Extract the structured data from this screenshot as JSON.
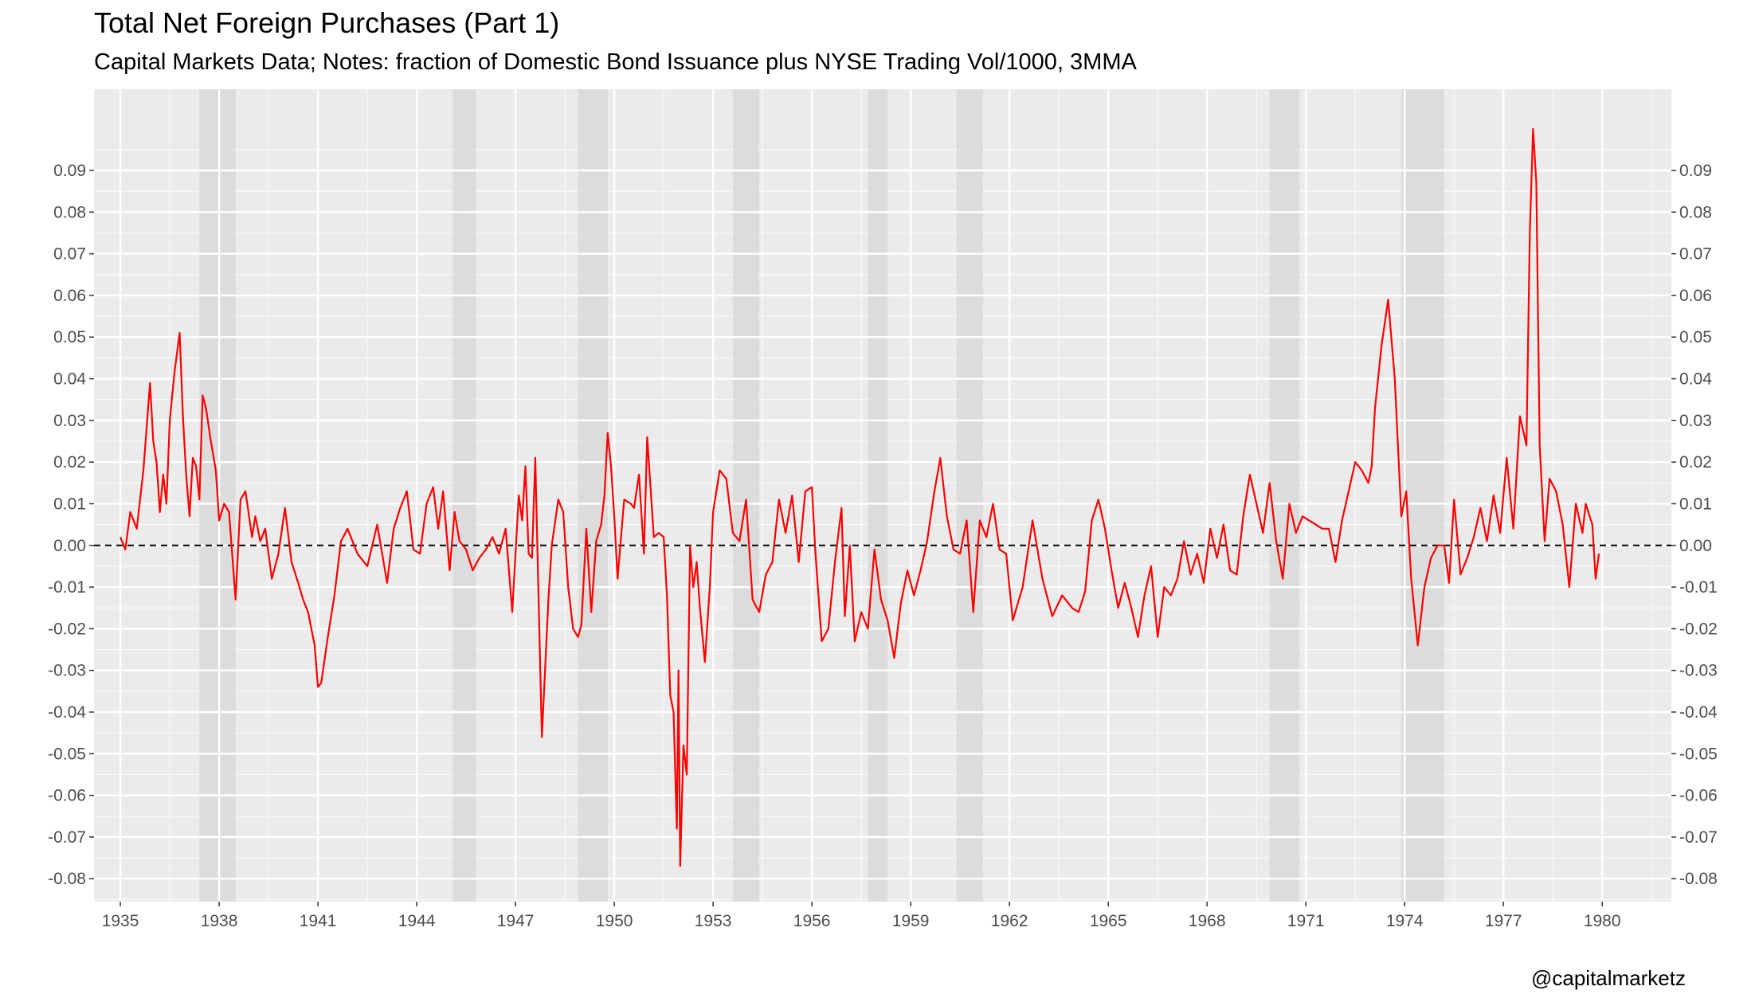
{
  "title": "Total Net Foreign Purchases (Part 1)",
  "subtitle": "Capital Markets Data; Notes: fraction of Domestic Bond Issuance plus NYSE Trading Vol/1000, 3MMA",
  "caption": "@capitalmarketz",
  "chart_data": {
    "type": "line",
    "xlim": [
      1934.2,
      1982.1
    ],
    "ylim": [
      -0.0855,
      0.1095
    ],
    "x_ticks": [
      1935,
      1938,
      1941,
      1944,
      1947,
      1950,
      1953,
      1956,
      1959,
      1962,
      1965,
      1968,
      1971,
      1974,
      1977,
      1980
    ],
    "y_ticks": [
      -0.08,
      -0.07,
      -0.06,
      -0.05,
      -0.04,
      -0.03,
      -0.02,
      -0.01,
      0.0,
      0.01,
      0.02,
      0.03,
      0.04,
      0.05,
      0.06,
      0.07,
      0.08,
      0.09
    ],
    "y_tick_labels": [
      "-0.08",
      "-0.07",
      "-0.06",
      "-0.05",
      "-0.04",
      "-0.03",
      "-0.02",
      "-0.01",
      "0.00",
      "0.01",
      "0.02",
      "0.03",
      "0.04",
      "0.05",
      "0.06",
      "0.07",
      "0.08",
      "0.09"
    ],
    "y_axis_secondary": true,
    "grid": true,
    "reference_line": {
      "y": 0,
      "style": "dashed"
    },
    "colors": {
      "series": "#ff0000",
      "shading": "#d9d9d9",
      "panel": "#ebebeb",
      "grid": "#ffffff",
      "reference": "#000000"
    },
    "recession_shading": [
      [
        1937.4,
        1938.5
      ],
      [
        1945.1,
        1945.8
      ],
      [
        1948.9,
        1949.8
      ],
      [
        1953.6,
        1954.4
      ],
      [
        1957.7,
        1958.3
      ],
      [
        1960.4,
        1961.2
      ],
      [
        1969.9,
        1970.8
      ],
      [
        1973.9,
        1975.2
      ]
    ],
    "series": [
      {
        "x": [
          1935.0,
          1935.15,
          1935.3,
          1935.5,
          1935.7,
          1935.9,
          1936.0,
          1936.1,
          1936.2,
          1936.3,
          1936.4,
          1936.5,
          1936.65,
          1936.8,
          1936.9,
          1937.0,
          1937.1,
          1937.2,
          1937.3,
          1937.4,
          1937.5,
          1937.6,
          1937.75,
          1937.9,
          1938.0,
          1938.15,
          1938.3,
          1938.5,
          1938.65,
          1938.8,
          1939.0,
          1939.1,
          1939.25,
          1939.4,
          1939.6,
          1939.8,
          1940.0,
          1940.2,
          1940.4,
          1940.55,
          1940.7,
          1940.9,
          1941.0,
          1941.1,
          1941.3,
          1941.5,
          1941.7,
          1941.9,
          1942.2,
          1942.5,
          1942.8,
          1943.1,
          1943.3,
          1943.5,
          1943.7,
          1943.9,
          1944.1,
          1944.3,
          1944.5,
          1944.65,
          1944.8,
          1945.0,
          1945.15,
          1945.3,
          1945.5,
          1945.7,
          1945.9,
          1946.1,
          1946.3,
          1946.5,
          1946.7,
          1946.9,
          1947.0,
          1947.1,
          1947.2,
          1947.3,
          1947.4,
          1947.5,
          1947.6,
          1947.8,
          1948.0,
          1948.1,
          1948.3,
          1948.45,
          1948.6,
          1948.75,
          1948.9,
          1949.0,
          1949.15,
          1949.3,
          1949.45,
          1949.6,
          1949.7,
          1949.8,
          1949.9,
          1950.0,
          1950.1,
          1950.3,
          1950.5,
          1950.6,
          1950.75,
          1950.9,
          1951.0,
          1951.2,
          1951.35,
          1951.5,
          1951.6,
          1951.7,
          1951.8,
          1951.9,
          1951.95,
          1952.0,
          1952.1,
          1952.2,
          1952.3,
          1952.4,
          1952.5,
          1952.6,
          1952.75,
          1952.9,
          1953.0,
          1953.2,
          1953.4,
          1953.6,
          1953.8,
          1954.0,
          1954.2,
          1954.4,
          1954.6,
          1954.8,
          1955.0,
          1955.2,
          1955.4,
          1955.6,
          1955.8,
          1956.0,
          1956.1,
          1956.3,
          1956.5,
          1956.7,
          1956.9,
          1957.0,
          1957.15,
          1957.3,
          1957.5,
          1957.7,
          1957.9,
          1958.1,
          1958.3,
          1958.5,
          1958.7,
          1958.9,
          1959.1,
          1959.3,
          1959.5,
          1959.7,
          1959.9,
          1960.1,
          1960.3,
          1960.5,
          1960.7,
          1960.9,
          1961.1,
          1961.3,
          1961.5,
          1961.7,
          1961.9,
          1962.1,
          1962.4,
          1962.7,
          1963.0,
          1963.3,
          1963.6,
          1963.9,
          1964.1,
          1964.3,
          1964.5,
          1964.7,
          1964.9,
          1965.1,
          1965.3,
          1965.5,
          1965.7,
          1965.9,
          1966.1,
          1966.3,
          1966.5,
          1966.7,
          1966.9,
          1967.1,
          1967.3,
          1967.5,
          1967.7,
          1967.9,
          1968.1,
          1968.3,
          1968.5,
          1968.7,
          1968.9,
          1969.1,
          1969.3,
          1969.5,
          1969.7,
          1969.9,
          1970.1,
          1970.3,
          1970.5,
          1970.7,
          1970.9,
          1971.1,
          1971.3,
          1971.5,
          1971.7,
          1971.9,
          1972.1,
          1972.3,
          1972.5,
          1972.7,
          1972.9,
          1973.0,
          1973.1,
          1973.3,
          1973.5,
          1973.7,
          1973.9,
          1974.05,
          1974.2,
          1974.4,
          1974.6,
          1974.8,
          1975.0,
          1975.2,
          1975.35,
          1975.5,
          1975.7,
          1975.9,
          1976.1,
          1976.3,
          1976.5,
          1976.7,
          1976.9,
          1977.1,
          1977.3,
          1977.5,
          1977.7,
          1977.8,
          1977.9,
          1978.0,
          1978.1,
          1978.25,
          1978.4,
          1978.6,
          1978.8,
          1979.0,
          1979.2,
          1979.4,
          1979.5,
          1979.7,
          1979.8,
          1979.9
        ],
        "y": [
          0.002,
          -0.001,
          0.008,
          0.004,
          0.018,
          0.039,
          0.025,
          0.02,
          0.008,
          0.017,
          0.01,
          0.03,
          0.042,
          0.051,
          0.031,
          0.017,
          0.007,
          0.021,
          0.019,
          0.011,
          0.036,
          0.033,
          0.025,
          0.018,
          0.006,
          0.01,
          0.008,
          -0.013,
          0.011,
          0.013,
          0.002,
          0.007,
          0.001,
          0.004,
          -0.008,
          -0.002,
          0.009,
          -0.004,
          -0.009,
          -0.013,
          -0.016,
          -0.024,
          -0.034,
          -0.033,
          -0.022,
          -0.012,
          0.001,
          0.004,
          -0.002,
          -0.005,
          0.005,
          -0.009,
          0.004,
          0.009,
          0.013,
          -0.001,
          -0.002,
          0.01,
          0.014,
          0.004,
          0.013,
          -0.006,
          0.008,
          0.001,
          -0.001,
          -0.006,
          -0.003,
          -0.001,
          0.002,
          -0.002,
          0.004,
          -0.016,
          -0.002,
          0.012,
          0.006,
          0.019,
          -0.002,
          -0.003,
          0.021,
          -0.046,
          -0.013,
          0.0,
          0.011,
          0.008,
          -0.01,
          -0.02,
          -0.022,
          -0.019,
          0.004,
          -0.016,
          0.001,
          0.005,
          0.012,
          0.027,
          0.019,
          0.007,
          -0.008,
          0.011,
          0.01,
          0.009,
          0.017,
          -0.002,
          0.026,
          0.002,
          0.003,
          0.002,
          -0.012,
          -0.036,
          -0.04,
          -0.068,
          -0.03,
          -0.077,
          -0.048,
          -0.055,
          0.0,
          -0.01,
          -0.004,
          -0.015,
          -0.028,
          -0.01,
          0.008,
          0.018,
          0.016,
          0.003,
          0.001,
          0.011,
          -0.013,
          -0.016,
          -0.007,
          -0.004,
          0.011,
          0.003,
          0.012,
          -0.004,
          0.013,
          0.014,
          -0.001,
          -0.023,
          -0.02,
          -0.004,
          0.009,
          -0.017,
          0.0,
          -0.023,
          -0.016,
          -0.02,
          -0.001,
          -0.013,
          -0.018,
          -0.027,
          -0.014,
          -0.006,
          -0.012,
          -0.006,
          0.001,
          0.012,
          0.021,
          0.007,
          -0.001,
          -0.002,
          0.006,
          -0.016,
          0.006,
          0.002,
          0.01,
          -0.001,
          -0.002,
          -0.018,
          -0.01,
          0.006,
          -0.008,
          -0.017,
          -0.012,
          -0.015,
          -0.016,
          -0.011,
          0.006,
          0.011,
          0.004,
          -0.006,
          -0.015,
          -0.009,
          -0.015,
          -0.022,
          -0.012,
          -0.005,
          -0.022,
          -0.01,
          -0.012,
          -0.008,
          0.001,
          -0.007,
          -0.002,
          -0.009,
          0.004,
          -0.003,
          0.005,
          -0.006,
          -0.007,
          0.007,
          0.017,
          0.01,
          0.003,
          0.015,
          0.001,
          -0.008,
          0.01,
          0.003,
          0.007,
          0.006,
          0.005,
          0.004,
          0.004,
          -0.004,
          0.006,
          0.013,
          0.02,
          0.018,
          0.015,
          0.019,
          0.033,
          0.048,
          0.059,
          0.04,
          0.007,
          0.013,
          -0.008,
          -0.024,
          -0.01,
          -0.003,
          0.0,
          0.0,
          -0.009,
          0.011,
          -0.007,
          -0.003,
          0.002,
          0.009,
          0.001,
          0.012,
          0.003,
          0.021,
          0.004,
          0.031,
          0.024,
          0.075,
          0.1,
          0.087,
          0.024,
          0.001,
          0.016,
          0.013,
          0.005,
          -0.01,
          0.01,
          0.003,
          0.01,
          0.005,
          -0.008,
          -0.002
        ]
      }
    ]
  }
}
